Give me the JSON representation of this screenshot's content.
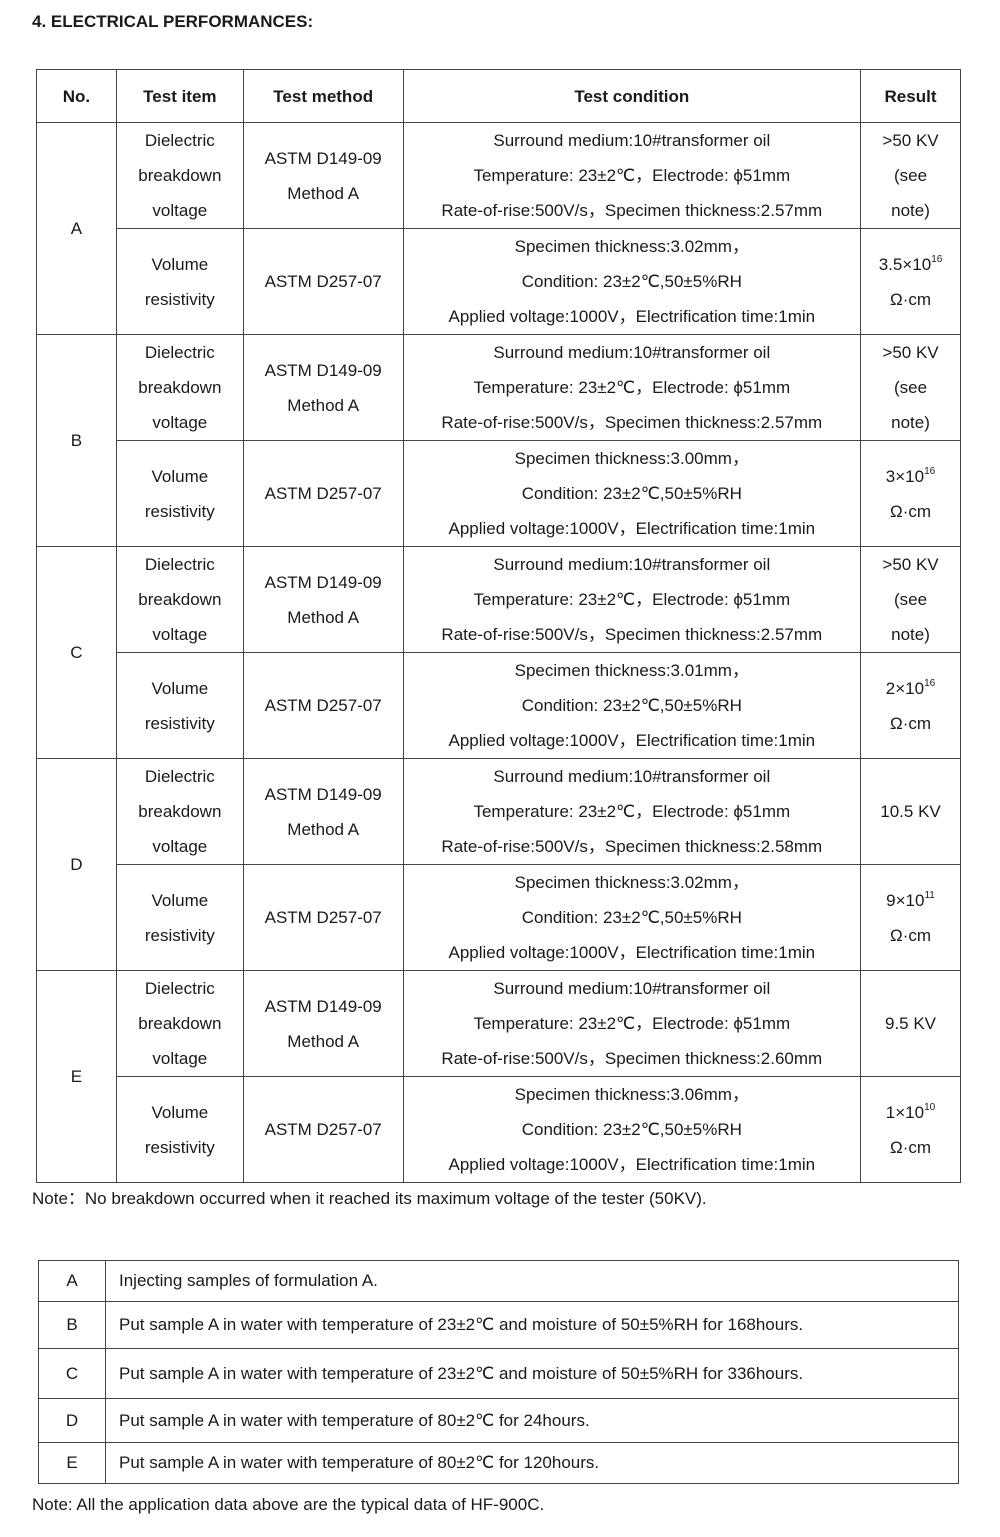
{
  "title": "4. ELECTRICAL PERFORMANCES:",
  "headers": [
    "No.",
    "Test item",
    "Test method",
    "Test condition",
    "Result"
  ],
  "groups": [
    {
      "id": "A",
      "rows": [
        {
          "item": [
            "Dielectric",
            "breakdown",
            "voltage"
          ],
          "method": [
            "ASTM D149-09",
            "Method A"
          ],
          "condition": [
            "Surround medium:10#transformer oil",
            "Temperature: 23±2℃，Electrode: ϕ51mm",
            "Rate-of-rise:500V/s，Specimen thickness:2.57mm"
          ],
          "result": {
            "base": ">50 KV",
            "exp": "",
            "lines": [
              "(see",
              "note)"
            ]
          }
        },
        {
          "item": [
            "Volume",
            "resistivity"
          ],
          "method": [
            "ASTM D257-07"
          ],
          "condition": [
            "Specimen thickness:3.02mm，",
            "Condition: 23±2℃,50±5%RH",
            "Applied voltage:1000V，Electrification time:1min"
          ],
          "result": {
            "base": "3.5×10",
            "exp": "16",
            "lines": [
              "Ω·cm"
            ]
          }
        }
      ]
    },
    {
      "id": "B",
      "rows": [
        {
          "item": [
            "Dielectric",
            "breakdown",
            "voltage"
          ],
          "method": [
            "ASTM D149-09",
            "Method A"
          ],
          "condition": [
            "Surround medium:10#transformer oil",
            "Temperature: 23±2℃，Electrode: ϕ51mm",
            "Rate-of-rise:500V/s，Specimen thickness:2.57mm"
          ],
          "result": {
            "base": ">50 KV",
            "exp": "",
            "lines": [
              "(see",
              "note)"
            ]
          }
        },
        {
          "item": [
            "Volume",
            "resistivity"
          ],
          "method": [
            "ASTM D257-07"
          ],
          "condition": [
            "Specimen thickness:3.00mm，",
            "Condition: 23±2℃,50±5%RH",
            "Applied voltage:1000V，Electrification time:1min"
          ],
          "result": {
            "base": "3×10",
            "exp": "16",
            "lines": [
              "Ω·cm"
            ]
          }
        }
      ]
    },
    {
      "id": "C",
      "rows": [
        {
          "item": [
            "Dielectric",
            "breakdown",
            "voltage"
          ],
          "method": [
            "ASTM D149-09",
            "Method A"
          ],
          "condition": [
            "Surround medium:10#transformer oil",
            "Temperature: 23±2℃，Electrode: ϕ51mm",
            "Rate-of-rise:500V/s，Specimen thickness:2.57mm"
          ],
          "result": {
            "base": ">50 KV",
            "exp": "",
            "lines": [
              "(see",
              "note)"
            ]
          }
        },
        {
          "item": [
            "Volume",
            "resistivity"
          ],
          "method": [
            "ASTM D257-07"
          ],
          "condition": [
            "Specimen thickness:3.01mm，",
            "Condition: 23±2℃,50±5%RH",
            "Applied voltage:1000V，Electrification time:1min"
          ],
          "result": {
            "base": "2×10",
            "exp": "16",
            "lines": [
              "Ω·cm"
            ]
          }
        }
      ]
    },
    {
      "id": "D",
      "rows": [
        {
          "item": [
            "Dielectric",
            "breakdown",
            "voltage"
          ],
          "method": [
            "ASTM D149-09",
            "Method A"
          ],
          "condition": [
            "Surround medium:10#transformer oil",
            "Temperature: 23±2℃，Electrode: ϕ51mm",
            "Rate-of-rise:500V/s，Specimen thickness:2.58mm"
          ],
          "result": {
            "base": "10.5 KV",
            "exp": "",
            "lines": []
          }
        },
        {
          "item": [
            "Volume",
            "resistivity"
          ],
          "method": [
            "ASTM D257-07"
          ],
          "condition": [
            "Specimen thickness:3.02mm，",
            "Condition: 23±2℃,50±5%RH",
            "Applied voltage:1000V，Electrification time:1min"
          ],
          "result": {
            "base": "9×10",
            "exp": "11",
            "lines": [
              "Ω·cm"
            ]
          }
        }
      ]
    },
    {
      "id": "E",
      "rows": [
        {
          "item": [
            "Dielectric",
            "breakdown",
            "voltage"
          ],
          "method": [
            "ASTM D149-09",
            "Method A"
          ],
          "condition": [
            "Surround medium:10#transformer oil",
            "Temperature: 23±2℃，Electrode: ϕ51mm",
            "Rate-of-rise:500V/s，Specimen thickness:2.60mm"
          ],
          "result": {
            "base": "9.5 KV",
            "exp": "",
            "lines": []
          }
        },
        {
          "item": [
            "Volume",
            "resistivity"
          ],
          "method": [
            "ASTM D257-07"
          ],
          "condition": [
            "Specimen thickness:3.06mm，",
            "Condition: 23±2℃,50±5%RH",
            "Applied voltage:1000V，Electrification time:1min"
          ],
          "result": {
            "base": "1×10",
            "exp": "10",
            "lines": [
              "Ω·cm"
            ]
          }
        }
      ]
    }
  ],
  "note1": "Note：No breakdown occurred when it reached its maximum voltage of the tester (50KV).",
  "legend": [
    {
      "k": "A",
      "v": "Injecting samples of formulation A."
    },
    {
      "k": "B",
      "v": "Put sample A in water with temperature of 23±2℃ and moisture of 50±5%RH for 168hours."
    },
    {
      "k": "C",
      "v": "Put sample A in water with temperature of 23±2℃ and moisture of 50±5%RH for 336hours."
    },
    {
      "k": "D",
      "v": "Put sample A in water with temperature of 80±2℃ for 24hours."
    },
    {
      "k": "E",
      "v": "Put sample A in water with temperature of 80±2℃ for 120hours."
    }
  ],
  "note2": "Note: All the application data above are the typical data of HF-900C."
}
